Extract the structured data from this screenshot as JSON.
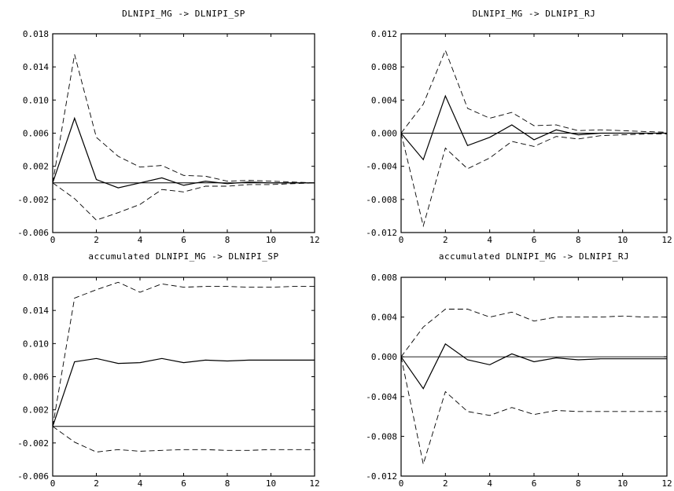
{
  "chart_data": [
    {
      "type": "line",
      "title": "DLNIPI_MG  -> DLNIPI_SP",
      "xlim": [
        0,
        12
      ],
      "ylim": [
        -0.006,
        0.018
      ],
      "xticks": [
        "0",
        "2",
        "4",
        "6",
        "8",
        "10",
        "12"
      ],
      "yticks": [
        "-0.006",
        "-0.002",
        "0.002",
        "0.006",
        "0.010",
        "0.014",
        "0.018"
      ],
      "x": [
        0,
        1,
        2,
        3,
        4,
        5,
        6,
        7,
        8,
        9,
        10,
        11,
        12
      ],
      "series": [
        {
          "style": "solid",
          "values": [
            0.0,
            0.0078,
            0.0004,
            -0.0006,
            0.0,
            0.0006,
            -0.0003,
            0.0002,
            -0.0001,
            0.0001,
            0.0,
            0.0,
            0.0
          ]
        },
        {
          "style": "dashed",
          "values": [
            0.0,
            0.0155,
            0.0055,
            0.0032,
            0.0019,
            0.0021,
            0.0009,
            0.0008,
            0.0002,
            0.0003,
            0.0002,
            0.0001,
            0.0
          ]
        },
        {
          "style": "dashed",
          "values": [
            0.0,
            -0.0019,
            -0.0045,
            -0.0036,
            -0.0026,
            -0.0008,
            -0.0011,
            -0.0004,
            -0.0004,
            -0.0002,
            -0.0002,
            -0.0001,
            0.0
          ]
        }
      ]
    },
    {
      "type": "line",
      "title": "DLNIPI_MG  -> DLNIPI_RJ",
      "xlim": [
        0,
        12
      ],
      "ylim": [
        -0.012,
        0.012
      ],
      "xticks": [
        "0",
        "2",
        "4",
        "6",
        "8",
        "10",
        "12"
      ],
      "yticks": [
        "-0.012",
        "-0.008",
        "-0.004",
        "0.000",
        "0.004",
        "0.008",
        "0.012"
      ],
      "x": [
        0,
        1,
        2,
        3,
        4,
        5,
        6,
        7,
        8,
        9,
        10,
        11,
        12
      ],
      "series": [
        {
          "style": "solid",
          "values": [
            0.0,
            -0.0032,
            0.0045,
            -0.0015,
            -0.0005,
            0.001,
            -0.0008,
            0.0004,
            -0.0002,
            0.0,
            0.0,
            0.0,
            0.0
          ]
        },
        {
          "style": "dashed",
          "values": [
            0.0,
            0.0035,
            0.01,
            0.003,
            0.0018,
            0.0025,
            0.0009,
            0.001,
            0.0003,
            0.0004,
            0.0003,
            0.0002,
            0.0001
          ]
        },
        {
          "style": "dashed",
          "values": [
            0.0,
            -0.0112,
            -0.0018,
            -0.0043,
            -0.003,
            -0.001,
            -0.0016,
            -0.0004,
            -0.0007,
            -0.0003,
            -0.0002,
            -0.0001,
            -0.0001
          ]
        }
      ]
    },
    {
      "type": "line",
      "title": "accumulated DLNIPI_MG  -> DLNIPI_SP",
      "xlim": [
        0,
        12
      ],
      "ylim": [
        -0.006,
        0.018
      ],
      "xticks": [
        "0",
        "2",
        "4",
        "6",
        "8",
        "10",
        "12"
      ],
      "yticks": [
        "-0.006",
        "-0.002",
        "0.002",
        "0.006",
        "0.010",
        "0.014",
        "0.018"
      ],
      "x": [
        0,
        1,
        2,
        3,
        4,
        5,
        6,
        7,
        8,
        9,
        10,
        11,
        12
      ],
      "series": [
        {
          "style": "solid",
          "values": [
            0.0,
            0.0078,
            0.0082,
            0.0076,
            0.0077,
            0.0082,
            0.0077,
            0.008,
            0.0079,
            0.008,
            0.008,
            0.008,
            0.008
          ]
        },
        {
          "style": "dashed",
          "values": [
            0.0,
            0.0155,
            0.0165,
            0.0174,
            0.0162,
            0.0172,
            0.0168,
            0.0169,
            0.0169,
            0.0168,
            0.0168,
            0.0169,
            0.0169
          ]
        },
        {
          "style": "dashed",
          "values": [
            0.0,
            -0.0019,
            -0.0031,
            -0.0028,
            -0.003,
            -0.0029,
            -0.0028,
            -0.0028,
            -0.0029,
            -0.0029,
            -0.0028,
            -0.0028,
            -0.0028
          ]
        }
      ]
    },
    {
      "type": "line",
      "title": "accumulated DLNIPI_MG  -> DLNIPI_RJ",
      "xlim": [
        0,
        12
      ],
      "ylim": [
        -0.012,
        0.008
      ],
      "xticks": [
        "0",
        "2",
        "4",
        "6",
        "8",
        "10",
        "12"
      ],
      "yticks": [
        "-0.012",
        "-0.008",
        "-0.004",
        "0.000",
        "0.004",
        "0.008"
      ],
      "x": [
        0,
        1,
        2,
        3,
        4,
        5,
        6,
        7,
        8,
        9,
        10,
        11,
        12
      ],
      "series": [
        {
          "style": "solid",
          "values": [
            0.0,
            -0.0032,
            0.0013,
            -0.0003,
            -0.0008,
            0.0003,
            -0.0005,
            -0.0001,
            -0.0003,
            -0.0002,
            -0.0002,
            -0.0002,
            -0.0002
          ]
        },
        {
          "style": "dashed",
          "values": [
            0.0,
            0.003,
            0.0048,
            0.0048,
            0.004,
            0.0045,
            0.0036,
            0.004,
            0.004,
            0.004,
            0.0041,
            0.004,
            0.004
          ]
        },
        {
          "style": "dashed",
          "values": [
            0.0,
            -0.0108,
            -0.0035,
            -0.0055,
            -0.0059,
            -0.0051,
            -0.0058,
            -0.0054,
            -0.0055,
            -0.0055,
            -0.0055,
            -0.0055,
            -0.0055
          ]
        }
      ]
    }
  ]
}
